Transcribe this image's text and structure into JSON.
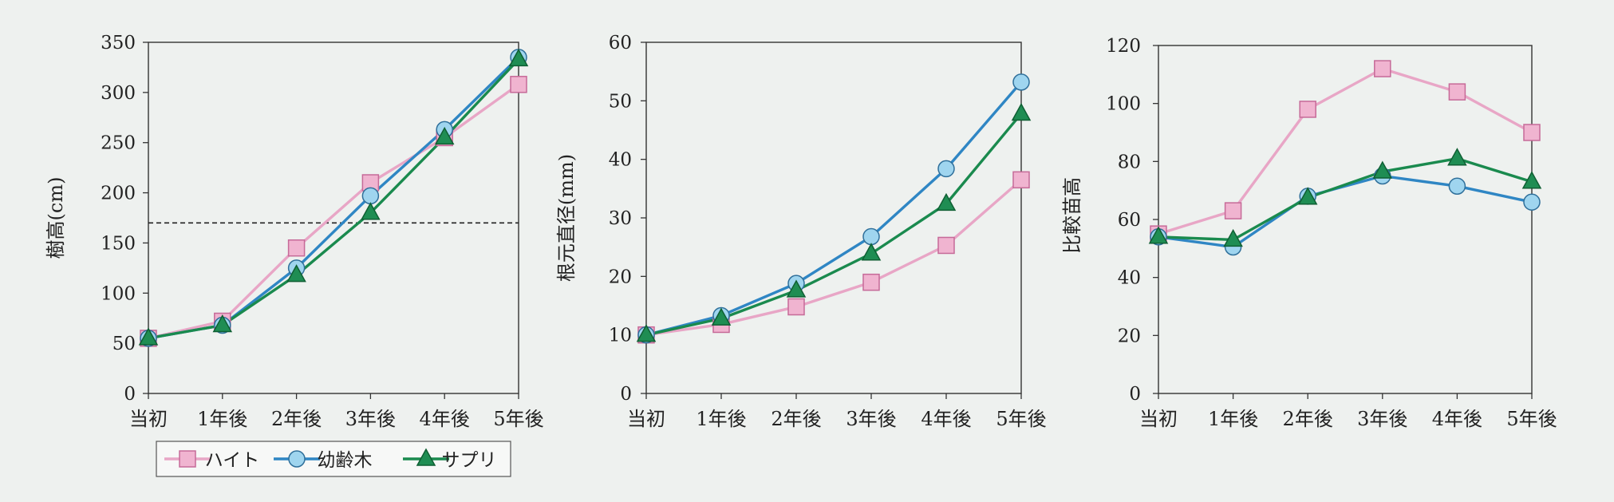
{
  "colors": {
    "background": "#eef1ef",
    "axis": "#333333",
    "height_series": "#e8a6c6",
    "young_series": "#2f86c4",
    "sapling_series": "#1a8a4e",
    "square_fill": "#f0b4d0",
    "circle_fill": "#9fd5ef",
    "triangle_fill": "#1f8d53"
  },
  "chart_data": [
    {
      "type": "line",
      "ylabel": "樹高(cm)",
      "categories": [
        "当初",
        "1年後",
        "2年後",
        "3年後",
        "4年後",
        "5年後"
      ],
      "ylim": [
        0,
        350
      ],
      "yticks": [
        "0",
        "50",
        "100",
        "150",
        "200",
        "250",
        "300",
        "350"
      ],
      "reference_line": 170,
      "series": [
        {
          "name": "ハイト",
          "marker": "square",
          "values": [
            55,
            72,
            145,
            210,
            255,
            308
          ]
        },
        {
          "name": "幼齢木",
          "marker": "circle",
          "values": [
            55,
            68,
            125,
            197,
            263,
            335
          ]
        },
        {
          "name": "サプリ",
          "marker": "triangle",
          "values": [
            55,
            68,
            118,
            180,
            255,
            333
          ]
        }
      ],
      "legend": [
        "ハイト",
        "幼齢木",
        "サプリ"
      ]
    },
    {
      "type": "line",
      "ylabel": "根元直径(mm)",
      "categories": [
        "当初",
        "1年後",
        "2年後",
        "3年後",
        "4年後",
        "5年後"
      ],
      "ylim": [
        0,
        60
      ],
      "yticks": [
        "0",
        "10",
        "20",
        "30",
        "40",
        "50",
        "60"
      ],
      "series": [
        {
          "name": "ハイト",
          "marker": "square",
          "values": [
            10,
            11.8,
            14.8,
            19,
            25.3,
            36.5
          ]
        },
        {
          "name": "幼齢木",
          "marker": "circle",
          "values": [
            10,
            13.3,
            18.8,
            26.8,
            38.4,
            53.2
          ]
        },
        {
          "name": "サプリ",
          "marker": "triangle",
          "values": [
            10,
            12.8,
            17.6,
            23.9,
            32.4,
            47.8
          ]
        }
      ]
    },
    {
      "type": "line",
      "ylabel": "比較苗高",
      "categories": [
        "当初",
        "1年後",
        "2年後",
        "3年後",
        "4年後",
        "5年後"
      ],
      "ylim": [
        0,
        120
      ],
      "yticks": [
        "0",
        "20",
        "40",
        "60",
        "80",
        "100",
        "120"
      ],
      "series": [
        {
          "name": "ハイト",
          "marker": "square",
          "values": [
            55,
            63,
            98,
            112,
            104,
            90
          ]
        },
        {
          "name": "幼齢木",
          "marker": "circle",
          "values": [
            54,
            50.5,
            68,
            75,
            71.5,
            66
          ]
        },
        {
          "name": "サプリ",
          "marker": "triangle",
          "values": [
            54,
            53,
            67.5,
            76.5,
            81,
            73
          ]
        }
      ]
    }
  ]
}
